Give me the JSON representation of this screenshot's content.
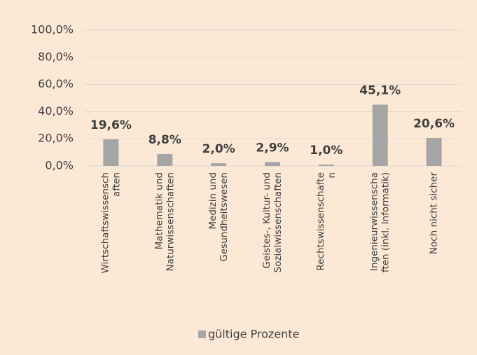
{
  "chart_data": {
    "type": "bar",
    "categories": [
      "Wirtschaftswissensch\naften",
      "Mathematik und\nNaturwissenschaften",
      "Medizin und\nGesundheitswesen",
      "Geistes-, Kultur- und\nSozialwissenschaften",
      "Rechtswissenschafte\nn",
      "Ingenieurwissenscha\nften (inkl. Informatik)",
      "Noch nicht sicher"
    ],
    "series": [
      {
        "name": "gültige Prozente",
        "color": "#a5a5a5",
        "values": [
          19.6,
          8.8,
          2.0,
          2.9,
          1.0,
          45.1,
          20.6
        ],
        "value_labels": [
          "19,6%",
          "8,8%",
          "2,0%",
          "2,9%",
          "1,0%",
          "45,1%",
          "20,6%"
        ]
      }
    ],
    "ylim": [
      0,
      100
    ],
    "yticks": [
      {
        "value": 0,
        "label": "0,0%"
      },
      {
        "value": 20,
        "label": "20,0%"
      },
      {
        "value": 40,
        "label": "40,0%"
      },
      {
        "value": 60,
        "label": "60,0%"
      },
      {
        "value": 80,
        "label": "80,0%"
      },
      {
        "value": 100,
        "label": "100,0%"
      }
    ],
    "grid": true,
    "legend": "bottom"
  }
}
